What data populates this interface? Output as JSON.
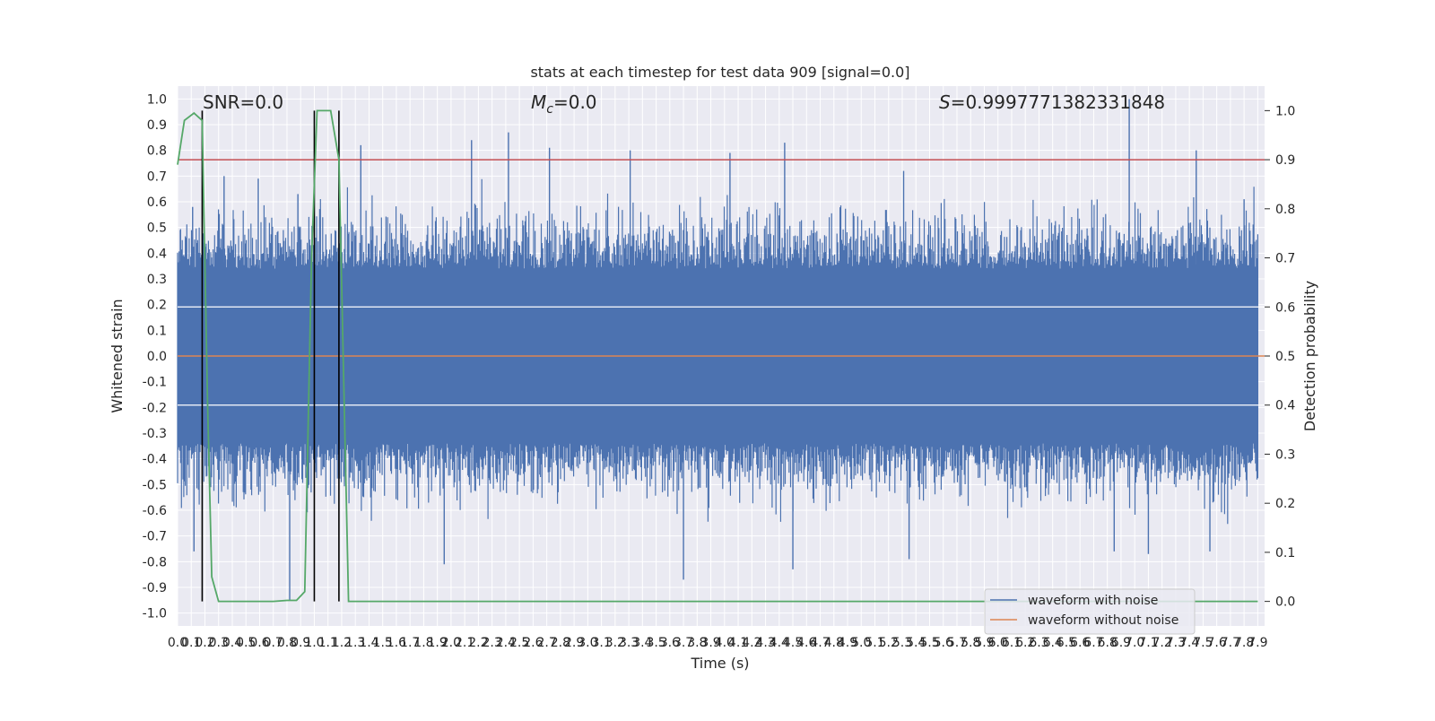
{
  "chart_data": {
    "type": "line",
    "title": "stats at each timestep for test data 909 [signal=0.0]",
    "xlabel": "Time (s)",
    "ylabel_left": "Whitened strain",
    "ylabel_right": "Detection probability",
    "xlim": [
      0.0,
      7.95
    ],
    "ylim_left": [
      -1.05,
      1.05
    ],
    "ylim_right": [
      -0.05,
      1.05
    ],
    "grid": true,
    "x_ticks": [
      "0.0",
      "0.1",
      "0.2",
      "0.3",
      "0.4",
      "0.5",
      "0.6",
      "0.7",
      "0.8",
      "0.9",
      "1.0",
      "1.1",
      "1.2",
      "1.3",
      "1.4",
      "1.5",
      "1.6",
      "1.7",
      "1.8",
      "1.9",
      "2.0",
      "2.1",
      "2.2",
      "2.3",
      "2.4",
      "2.5",
      "2.6",
      "2.7",
      "2.8",
      "2.9",
      "3.0",
      "3.1",
      "3.2",
      "3.3",
      "3.4",
      "3.5",
      "3.6",
      "3.7",
      "3.8",
      "3.9",
      "4.0",
      "4.1",
      "4.2",
      "4.3",
      "4.4",
      "4.5",
      "4.6",
      "4.7",
      "4.8",
      "4.9",
      "5.0",
      "5.1",
      "5.2",
      "5.3",
      "5.4",
      "5.5",
      "5.6",
      "5.7",
      "5.8",
      "5.9",
      "6.0",
      "6.1",
      "6.2",
      "6.3",
      "6.4",
      "6.5",
      "6.6",
      "6.7",
      "6.8",
      "6.9",
      "7.0",
      "7.1",
      "7.2",
      "7.3",
      "7.4",
      "7.5",
      "7.6",
      "7.7",
      "7.8",
      "7.9"
    ],
    "y_ticks_left": [
      "-1.0",
      "-0.9",
      "-0.8",
      "-0.7",
      "-0.6",
      "-0.5",
      "-0.4",
      "-0.3",
      "-0.2",
      "-0.1",
      "0.0",
      "0.1",
      "0.2",
      "0.3",
      "0.4",
      "0.5",
      "0.6",
      "0.7",
      "0.8",
      "0.9",
      "1.0"
    ],
    "y_ticks_right": [
      "0.0",
      "0.1",
      "0.2",
      "0.3",
      "0.4",
      "0.5",
      "0.6",
      "0.7",
      "0.8",
      "0.9",
      "1.0"
    ],
    "annotations": {
      "snr": "SNR=0.0",
      "mc_symbol": "M",
      "mc_sub": "c",
      "mc_value": "=0.0",
      "s_symbol": "S",
      "s_value": "=0.9997771382331848"
    },
    "legend": {
      "placement": "lower-right",
      "entries": [
        "waveform with noise",
        "waveform without noise"
      ]
    },
    "threshold_right": 0.9,
    "vertical_markers_x": [
      0.18,
      1.0,
      1.18
    ],
    "noise_series": {
      "name": "waveform with noise",
      "color": "#4c72b0",
      "spikes_max": [
        {
          "x": 0.02,
          "y": 0.49
        },
        {
          "x": 0.11,
          "y": 0.58
        },
        {
          "x": 0.34,
          "y": 0.7
        },
        {
          "x": 0.59,
          "y": 0.69
        },
        {
          "x": 0.88,
          "y": 0.63
        },
        {
          "x": 1.34,
          "y": 0.82
        },
        {
          "x": 2.15,
          "y": 0.84
        },
        {
          "x": 2.42,
          "y": 0.87
        },
        {
          "x": 2.72,
          "y": 0.81
        },
        {
          "x": 3.31,
          "y": 0.8
        },
        {
          "x": 4.04,
          "y": 0.79
        },
        {
          "x": 4.44,
          "y": 0.83
        },
        {
          "x": 5.31,
          "y": 0.72
        },
        {
          "x": 6.96,
          "y": 1.0
        },
        {
          "x": 7.45,
          "y": 0.8
        },
        {
          "x": 7.8,
          "y": 0.61
        }
      ],
      "spikes_min": [
        {
          "x": 0.12,
          "y": -0.76
        },
        {
          "x": 0.82,
          "y": -0.95
        },
        {
          "x": 1.95,
          "y": -0.81
        },
        {
          "x": 3.7,
          "y": -0.87
        },
        {
          "x": 4.5,
          "y": -0.83
        },
        {
          "x": 5.35,
          "y": -0.79
        },
        {
          "x": 6.85,
          "y": -0.76
        },
        {
          "x": 7.1,
          "y": -0.77
        },
        {
          "x": 7.55,
          "y": -0.76
        }
      ]
    },
    "clean_series": {
      "name": "waveform without noise",
      "color": "#dd8452",
      "value": 0.0
    },
    "probability_series": {
      "color": "#55a868",
      "x": [
        0.0,
        0.05,
        0.12,
        0.18,
        0.22,
        0.25,
        0.3,
        0.4,
        0.5,
        0.6,
        0.7,
        0.8,
        0.87,
        0.93,
        0.98,
        1.02,
        1.07,
        1.12,
        1.18,
        1.25,
        1.32,
        1.5,
        2.0,
        3.0,
        4.0,
        5.0,
        6.0,
        7.0,
        7.9
      ],
      "y": [
        0.89,
        0.98,
        0.995,
        0.98,
        0.4,
        0.05,
        0.0,
        0.0,
        0.0,
        0.0,
        0.0,
        0.002,
        0.002,
        0.02,
        0.7,
        1.0,
        1.0,
        1.0,
        0.9,
        0.0,
        0.0,
        0.0,
        0.0,
        0.0,
        0.0,
        0.0,
        0.0,
        0.0,
        0.0
      ]
    },
    "line_colors": {
      "threshold": "#c44e52",
      "markers": "#000000",
      "grid": "#ffffff",
      "background": "#eaeaf2"
    }
  }
}
